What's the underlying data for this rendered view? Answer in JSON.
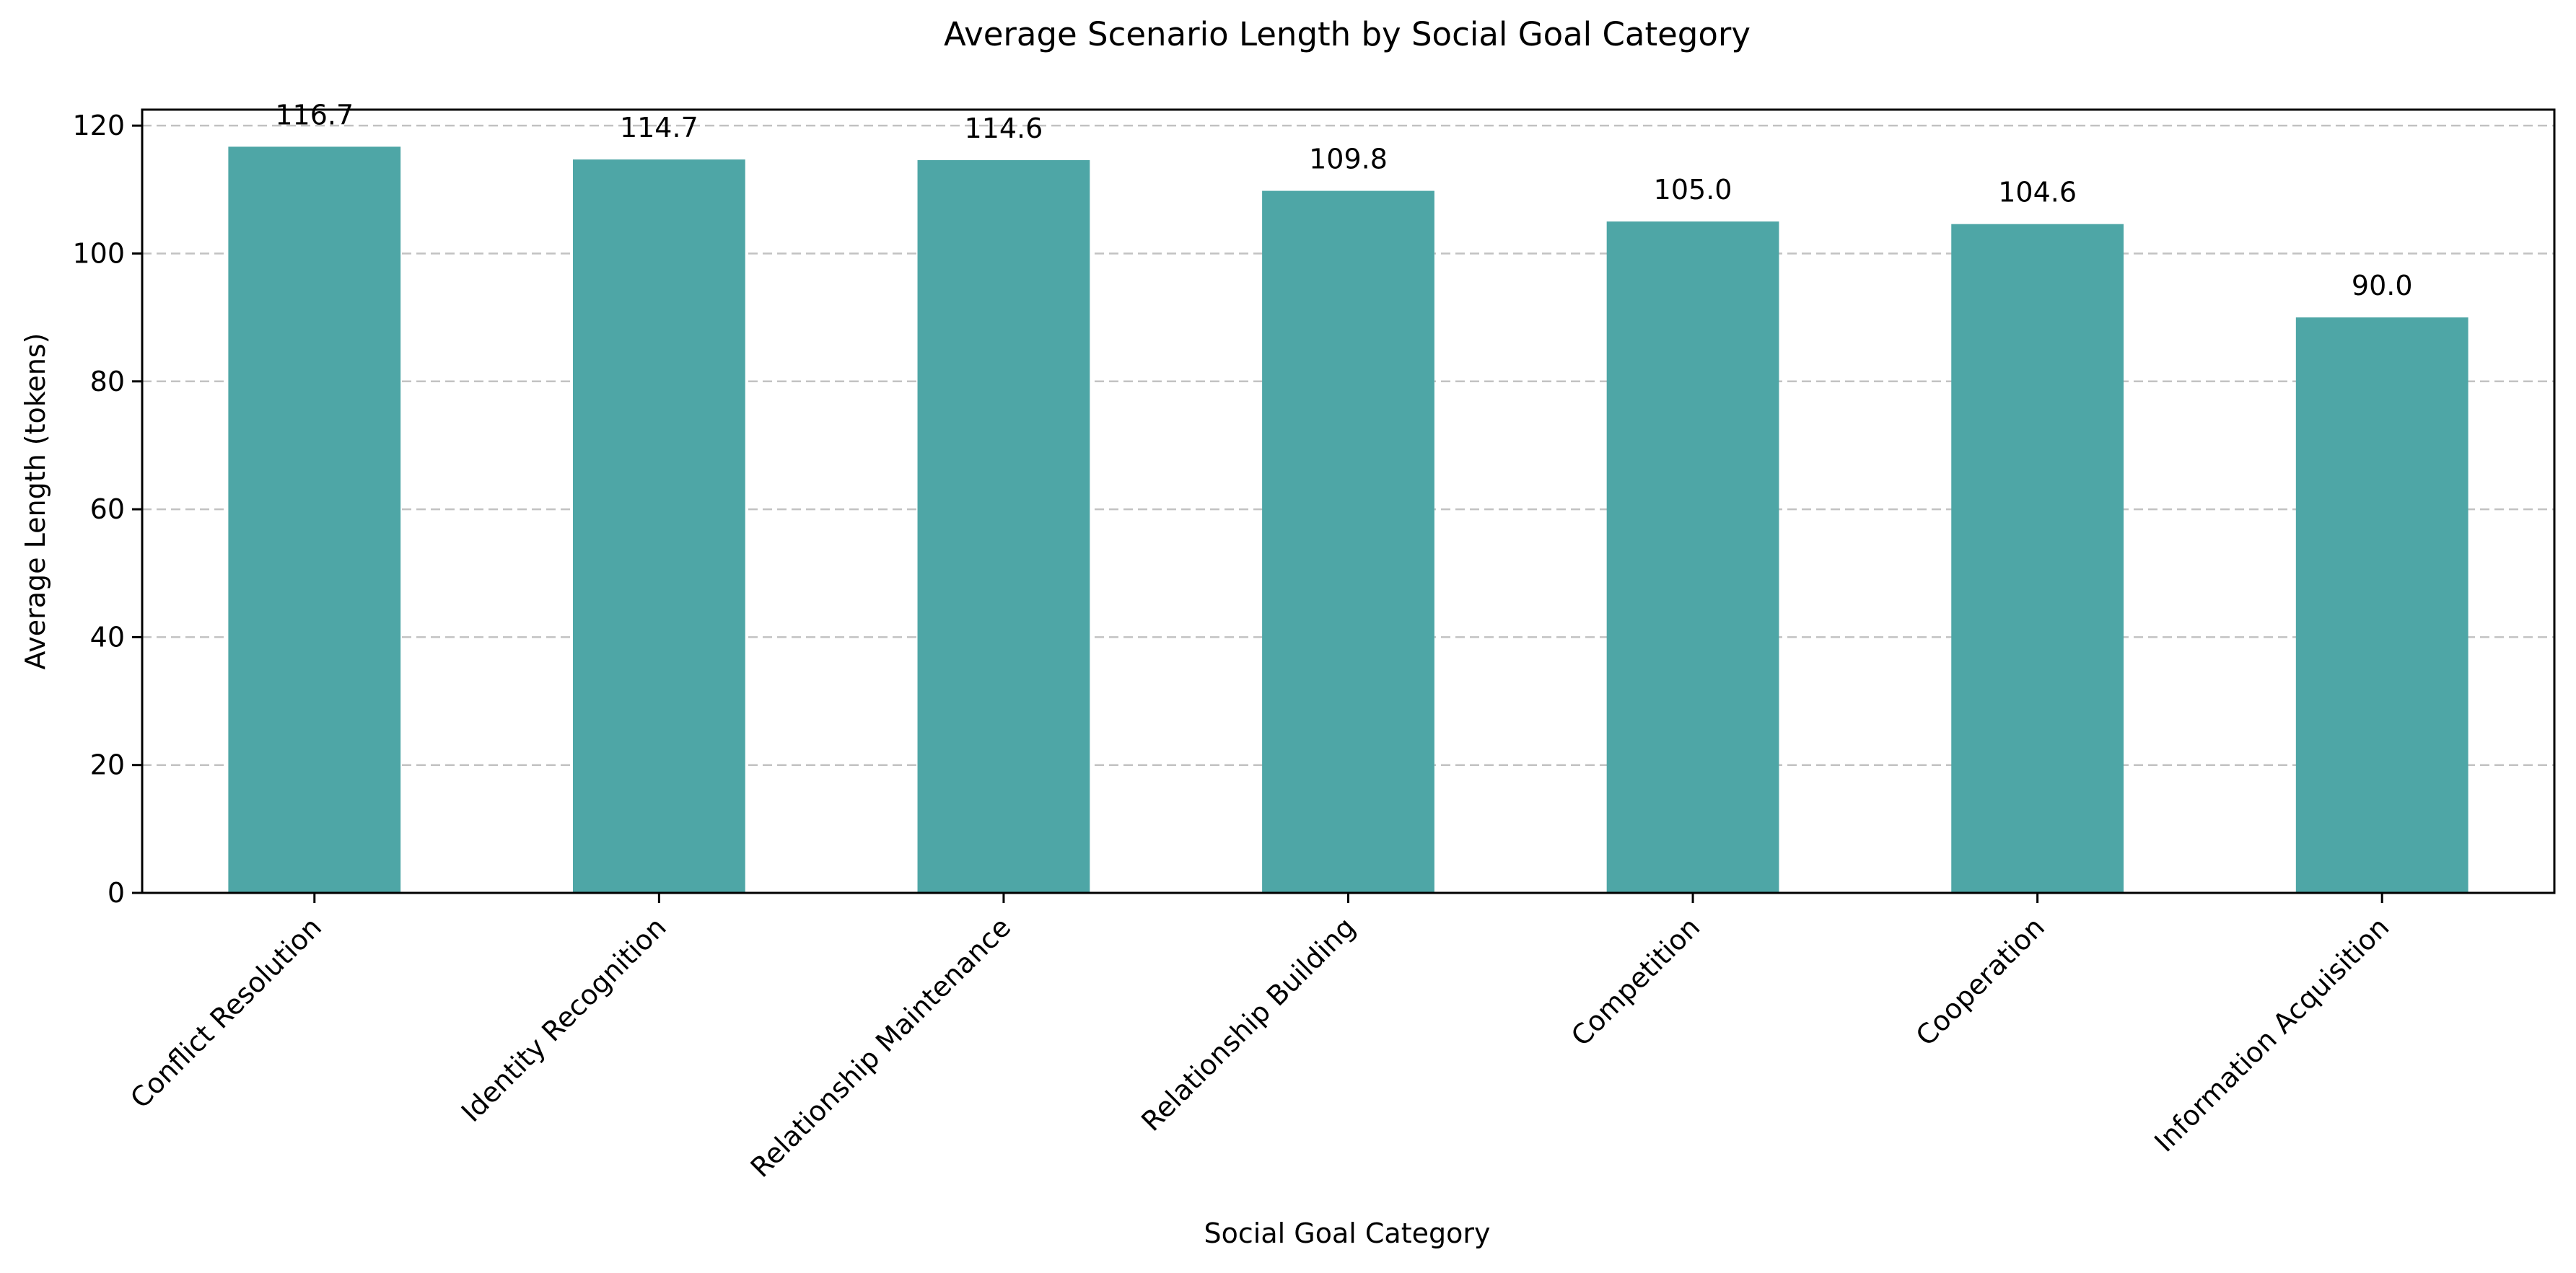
{
  "chart_data": {
    "type": "bar",
    "title": "Average Scenario Length by Social Goal Category",
    "xlabel": "Social Goal Category",
    "ylabel": "Average Length (tokens)",
    "categories": [
      "Conflict Resolution",
      "Identity Recognition",
      "Relationship Maintenance",
      "Relationship Building",
      "Competition",
      "Cooperation",
      "Information Acquisition"
    ],
    "values": [
      116.7,
      114.7,
      114.6,
      109.8,
      105.0,
      104.6,
      90.0
    ],
    "data_labels": [
      "116.7",
      "114.7",
      "114.6",
      "109.8",
      "105.0",
      "104.6",
      "90.0"
    ],
    "ylim": [
      0,
      122.5
    ],
    "yticks": [
      0,
      20,
      40,
      60,
      80,
      100,
      120
    ],
    "grid": "horizontal-dashed",
    "legend": "none",
    "bar_color": "#4ea6a6"
  }
}
